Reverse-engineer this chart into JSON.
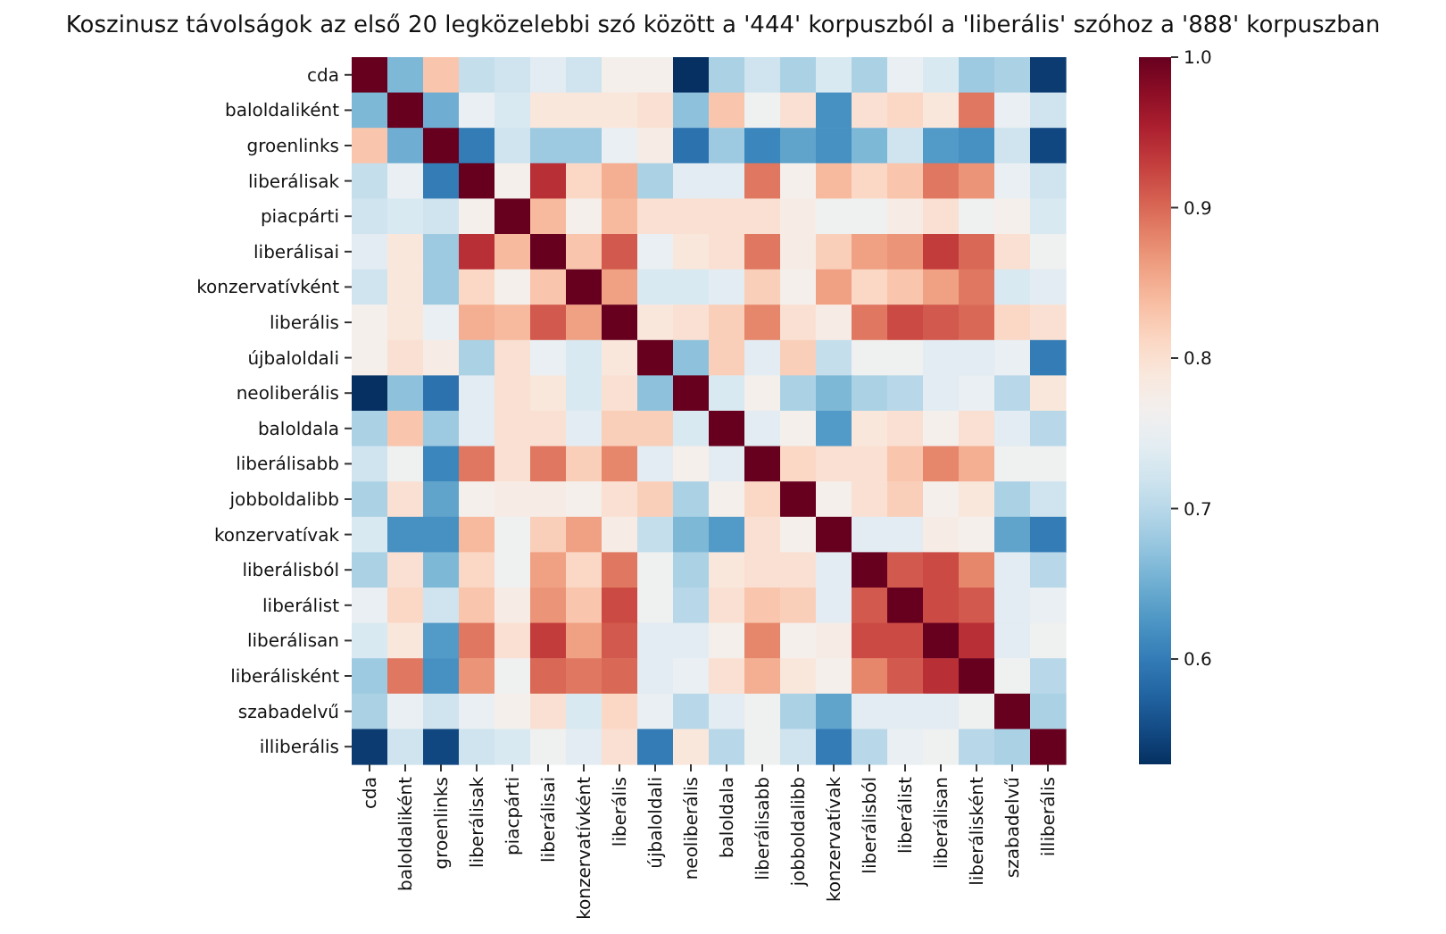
{
  "chart_data": {
    "type": "heatmap",
    "title": "Koszinusz távolságok az első 20 legközelebbi szó között a '444' korpuszból a 'liberális' szóhoz a '888' korpuszban",
    "categories": [
      "cda",
      "baloldaliként",
      "groenlinks",
      "liberálisak",
      "piacpárti",
      "liberálisai",
      "konzervatívként",
      "liberális",
      "újbaloldali",
      "neoliberális",
      "baloldala",
      "liberálisabb",
      "jobboldalibb",
      "konzervatívak",
      "liberálisból",
      "liberálist",
      "liberálisan",
      "liberálisként",
      "szabadelvű",
      "illiberális"
    ],
    "y_categories": [
      "cda",
      "baloldaliként",
      "groenlinks",
      "liberálisak",
      "piacpárti",
      "liberálisai",
      "konzervatívként",
      "liberális",
      "újbaloldali",
      "neoliberális",
      "baloldala",
      "liberálisabb",
      "jobboldalibb",
      "konzervatívak",
      "liberálisból",
      "liberálist",
      "liberálisan",
      "liberálisként",
      "szabadelvű",
      "illiberális"
    ],
    "cells": [
      [
        1,
        0.66,
        0.83,
        0.71,
        0.72,
        0.74,
        0.72,
        0.77,
        0.77,
        0.53,
        0.69,
        0.72,
        0.69,
        0.73,
        0.69,
        0.75,
        0.73,
        0.68,
        0.69,
        0.54
      ],
      [
        0.66,
        1,
        0.65,
        0.75,
        0.73,
        0.79,
        0.79,
        0.79,
        0.8,
        0.67,
        0.83,
        0.76,
        0.8,
        0.62,
        0.8,
        0.81,
        0.79,
        0.89,
        0.75,
        0.72
      ],
      [
        0.83,
        0.65,
        1,
        0.6,
        0.72,
        0.68,
        0.68,
        0.75,
        0.78,
        0.59,
        0.68,
        0.61,
        0.64,
        0.62,
        0.66,
        0.72,
        0.63,
        0.62,
        0.72,
        0.55
      ],
      [
        0.71,
        0.75,
        0.6,
        1,
        0.77,
        0.94,
        0.81,
        0.85,
        0.69,
        0.74,
        0.74,
        0.89,
        0.77,
        0.84,
        0.81,
        0.83,
        0.89,
        0.87,
        0.75,
        0.72
      ],
      [
        0.72,
        0.73,
        0.72,
        0.77,
        1,
        0.84,
        0.77,
        0.84,
        0.8,
        0.8,
        0.8,
        0.8,
        0.78,
        0.76,
        0.76,
        0.78,
        0.8,
        0.76,
        0.77,
        0.73
      ],
      [
        0.74,
        0.79,
        0.68,
        0.94,
        0.84,
        1,
        0.83,
        0.91,
        0.75,
        0.79,
        0.8,
        0.89,
        0.78,
        0.82,
        0.86,
        0.87,
        0.93,
        0.9,
        0.8,
        0.76
      ],
      [
        0.72,
        0.79,
        0.68,
        0.81,
        0.77,
        0.83,
        1,
        0.86,
        0.73,
        0.73,
        0.74,
        0.82,
        0.77,
        0.86,
        0.81,
        0.83,
        0.86,
        0.89,
        0.73,
        0.74
      ],
      [
        0.77,
        0.79,
        0.75,
        0.85,
        0.84,
        0.91,
        0.86,
        1,
        0.79,
        0.8,
        0.82,
        0.88,
        0.8,
        0.78,
        0.89,
        0.92,
        0.91,
        0.9,
        0.81,
        0.8
      ],
      [
        0.77,
        0.8,
        0.78,
        0.69,
        0.8,
        0.75,
        0.73,
        0.79,
        1,
        0.67,
        0.82,
        0.74,
        0.82,
        0.71,
        0.76,
        0.76,
        0.74,
        0.74,
        0.75,
        0.6
      ],
      [
        0.53,
        0.67,
        0.59,
        0.74,
        0.8,
        0.79,
        0.73,
        0.8,
        0.67,
        1,
        0.73,
        0.77,
        0.69,
        0.66,
        0.69,
        0.7,
        0.74,
        0.75,
        0.7,
        0.79
      ],
      [
        0.69,
        0.83,
        0.68,
        0.74,
        0.8,
        0.8,
        0.74,
        0.82,
        0.82,
        0.73,
        1,
        0.74,
        0.77,
        0.63,
        0.79,
        0.8,
        0.77,
        0.8,
        0.74,
        0.7
      ],
      [
        0.72,
        0.76,
        0.61,
        0.89,
        0.8,
        0.89,
        0.82,
        0.88,
        0.74,
        0.77,
        0.74,
        1,
        0.81,
        0.8,
        0.8,
        0.83,
        0.88,
        0.85,
        0.76,
        0.76
      ],
      [
        0.69,
        0.8,
        0.64,
        0.77,
        0.78,
        0.78,
        0.77,
        0.8,
        0.82,
        0.69,
        0.77,
        0.81,
        1,
        0.77,
        0.8,
        0.82,
        0.77,
        0.79,
        0.69,
        0.72
      ],
      [
        0.73,
        0.62,
        0.62,
        0.84,
        0.76,
        0.82,
        0.86,
        0.78,
        0.71,
        0.66,
        0.63,
        0.8,
        0.77,
        1,
        0.74,
        0.74,
        0.78,
        0.77,
        0.64,
        0.6
      ],
      [
        0.69,
        0.8,
        0.66,
        0.81,
        0.76,
        0.86,
        0.81,
        0.89,
        0.76,
        0.69,
        0.79,
        0.8,
        0.8,
        0.74,
        1,
        0.91,
        0.92,
        0.88,
        0.74,
        0.7
      ],
      [
        0.75,
        0.81,
        0.72,
        0.83,
        0.78,
        0.87,
        0.83,
        0.92,
        0.76,
        0.7,
        0.8,
        0.83,
        0.82,
        0.74,
        0.91,
        1,
        0.92,
        0.91,
        0.74,
        0.75
      ],
      [
        0.73,
        0.79,
        0.63,
        0.89,
        0.8,
        0.93,
        0.86,
        0.91,
        0.74,
        0.74,
        0.77,
        0.88,
        0.77,
        0.78,
        0.92,
        0.92,
        1,
        0.94,
        0.74,
        0.76
      ],
      [
        0.68,
        0.89,
        0.62,
        0.87,
        0.76,
        0.9,
        0.89,
        0.9,
        0.74,
        0.75,
        0.8,
        0.85,
        0.79,
        0.77,
        0.88,
        0.91,
        0.94,
        1,
        0.76,
        0.7
      ],
      [
        0.69,
        0.75,
        0.72,
        0.75,
        0.77,
        0.8,
        0.73,
        0.81,
        0.75,
        0.7,
        0.74,
        0.76,
        0.69,
        0.64,
        0.74,
        0.74,
        0.74,
        0.76,
        1,
        0.69
      ],
      [
        0.54,
        0.72,
        0.55,
        0.72,
        0.73,
        0.76,
        0.74,
        0.8,
        0.6,
        0.79,
        0.7,
        0.76,
        0.72,
        0.6,
        0.7,
        0.75,
        0.76,
        0.7,
        0.69,
        1
      ]
    ],
    "clim": [
      0.53,
      1.0
    ],
    "cticks": [
      {
        "value": 0.6,
        "label": "0.6"
      },
      {
        "value": 0.7,
        "label": "0.7"
      },
      {
        "value": 0.8,
        "label": "0.8"
      },
      {
        "value": 0.9,
        "label": "0.9"
      },
      {
        "value": 1,
        "label": "1.0"
      }
    ]
  }
}
